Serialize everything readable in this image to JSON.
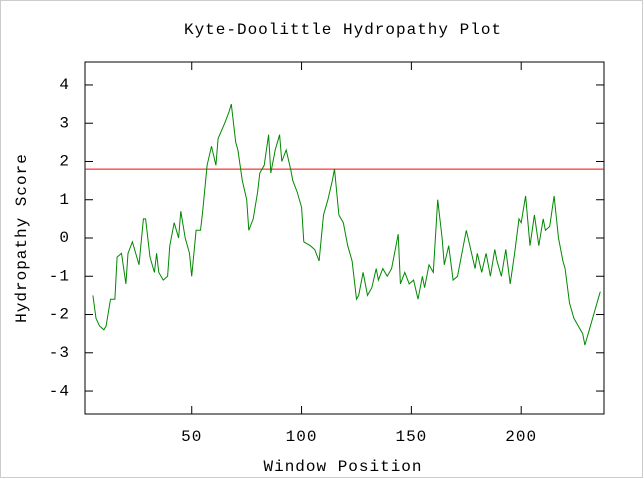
{
  "chart_data": {
    "type": "line",
    "title": "Kyte-Doolittle Hydropathy Plot",
    "x_label": "Window Position",
    "y_label": "Hydropathy Score",
    "x": [
      5,
      6.4,
      8,
      10,
      11,
      13,
      15,
      16,
      18,
      20,
      21,
      23,
      25,
      26,
      28,
      29,
      31,
      33,
      34,
      35,
      37,
      39,
      40,
      42,
      44,
      45,
      47,
      49,
      50,
      52,
      54,
      55,
      57,
      59,
      61,
      62,
      65,
      67,
      68,
      70,
      71,
      73,
      75,
      76,
      78,
      80,
      81,
      83,
      85,
      86,
      88,
      90,
      91,
      93,
      95,
      96,
      98,
      100,
      101,
      104,
      106,
      108,
      110,
      112,
      114,
      115,
      117,
      119,
      121,
      123,
      125,
      126,
      128,
      130,
      132,
      134,
      135,
      137,
      139,
      141,
      143,
      144,
      145,
      147,
      149,
      151,
      153,
      155,
      156,
      158,
      160,
      162,
      164,
      165,
      167,
      169,
      171,
      173,
      175,
      177,
      179,
      180,
      182,
      184,
      186,
      188,
      189,
      191,
      193,
      195,
      197,
      199,
      200,
      202,
      204,
      206,
      208,
      210,
      211,
      213,
      215,
      217,
      219,
      220,
      222,
      224,
      226,
      228,
      229,
      231,
      233,
      235,
      236
    ],
    "series": [
      {
        "color": "#008800",
        "values": [
          -1.5,
          -2.1,
          -2.3,
          -2.4,
          -2.3,
          -1.6,
          -1.6,
          -0.5,
          -0.4,
          -1.2,
          -0.4,
          -0.1,
          -0.5,
          -0.7,
          0.5,
          0.5,
          -0.5,
          -0.9,
          -0.4,
          -0.9,
          -1.1,
          -1.0,
          -0.2,
          0.4,
          0.0,
          0.7,
          0.0,
          -0.4,
          -1.0,
          0.2,
          0.2,
          0.7,
          1.9,
          2.4,
          1.9,
          2.6,
          3.0,
          3.3,
          3.5,
          2.5,
          2.3,
          1.5,
          1.0,
          0.2,
          0.5,
          1.2,
          1.7,
          1.9,
          2.7,
          1.7,
          2.3,
          2.7,
          2.0,
          2.3,
          1.8,
          1.5,
          1.2,
          0.8,
          -0.1,
          -0.2,
          -0.3,
          -0.6,
          0.6,
          1.0,
          1.5,
          1.8,
          0.6,
          0.4,
          -0.2,
          -0.6,
          -1.6,
          -1.5,
          -0.9,
          -1.5,
          -1.3,
          -0.8,
          -1.1,
          -0.8,
          -1.0,
          -0.8,
          -0.2,
          0.1,
          -1.2,
          -0.9,
          -1.2,
          -1.1,
          -1.6,
          -1.0,
          -1.3,
          -0.7,
          -0.9,
          1.0,
          0.0,
          -0.7,
          -0.2,
          -1.1,
          -1.0,
          -0.4,
          0.2,
          -0.3,
          -0.8,
          -0.4,
          -0.9,
          -0.4,
          -1.0,
          -0.3,
          -0.6,
          -1.0,
          -0.3,
          -1.2,
          -0.4,
          0.5,
          0.4,
          1.1,
          -0.2,
          0.6,
          -0.2,
          0.5,
          0.2,
          0.3,
          1.1,
          0.0,
          -0.6,
          -0.8,
          -1.7,
          -2.1,
          -2.3,
          -2.5,
          -2.8,
          -2.4,
          -2.0,
          -1.6,
          -1.4
        ]
      }
    ],
    "threshold": {
      "value": 1.8,
      "color": "#ff0000"
    },
    "xlim": [
      1.4,
      237.7
    ],
    "xticks": [
      50,
      100,
      150,
      200
    ],
    "ylim": [
      -4.6,
      4.6
    ],
    "yticks": [
      -4,
      -3,
      -2,
      -1,
      0,
      1,
      2,
      3,
      4
    ]
  }
}
